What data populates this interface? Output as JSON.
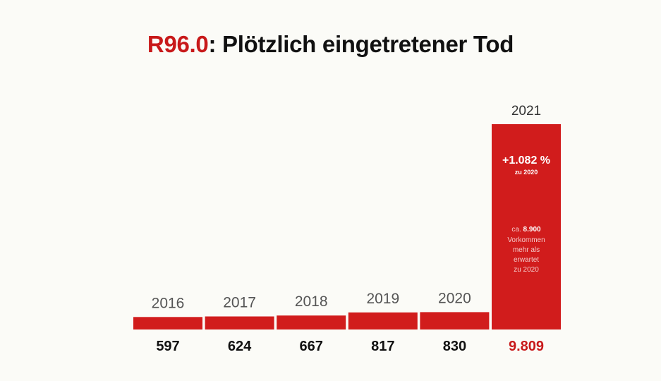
{
  "title": {
    "code": "R96.0",
    "text": ": Plötzlich eingetretener Tod"
  },
  "colors": {
    "bar": "#d11c1c",
    "highlight": "#c8191a",
    "background": "#fbfbf7"
  },
  "chart_data": {
    "type": "bar",
    "title": "R96.0: Plötzlich eingetretener Tod",
    "categories": [
      "2016",
      "2017",
      "2018",
      "2019",
      "2020",
      "2021"
    ],
    "values": [
      597,
      624,
      667,
      817,
      830,
      9809
    ],
    "value_labels": [
      "597",
      "624",
      "667",
      "817",
      "830",
      "9.809"
    ],
    "xlabel": "",
    "ylabel": "",
    "ylim": [
      0,
      9809
    ],
    "grid": false,
    "legend": "none",
    "annotation": {
      "change": "+1.082 %",
      "change_ref": "zu 2020",
      "note_prefix": "ca.",
      "note_value": "8.900",
      "note_lines": [
        "Vorkommen",
        "mehr als",
        "erwartet",
        "zu 2020"
      ]
    }
  }
}
